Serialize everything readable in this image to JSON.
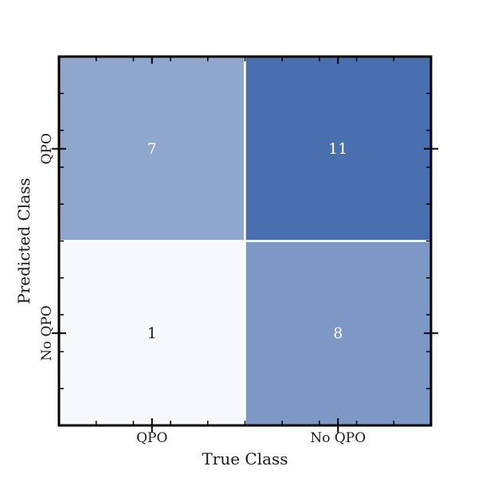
{
  "chart_data": {
    "type": "heatmap",
    "title": "",
    "xlabel": "True Class",
    "ylabel": "Predicted Class",
    "x_categories": [
      "QPO",
      "No QPO"
    ],
    "y_categories": [
      "QPO",
      "No QPO"
    ],
    "values": [
      [
        7,
        11
      ],
      [
        1,
        8
      ]
    ],
    "value_range": [
      1,
      11
    ],
    "colormap": {
      "low": "#f7f8fc",
      "high": "#4a6fae"
    },
    "cell_border_color": "#ffffff",
    "grid": false,
    "legend": "none"
  }
}
